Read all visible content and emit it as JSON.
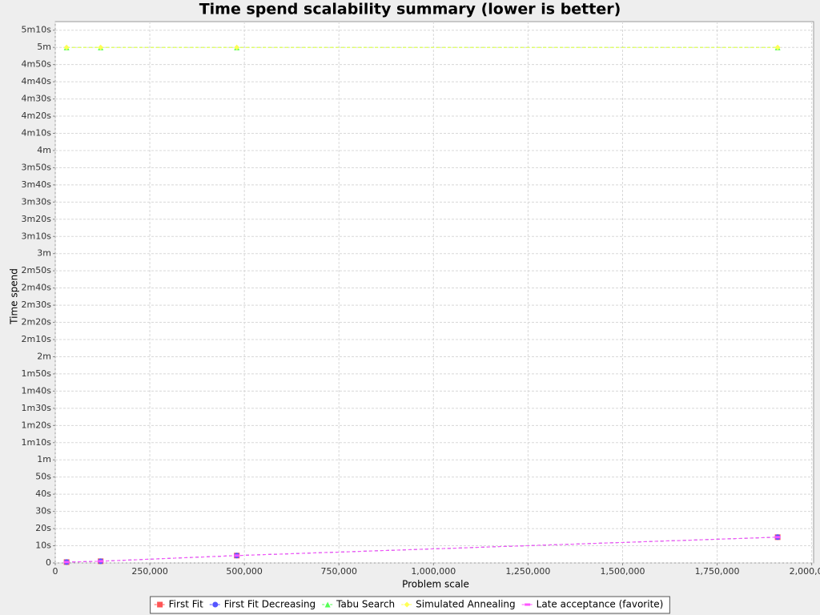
{
  "chart_data": {
    "type": "line",
    "title": "Time spend scalability summary (lower is better)",
    "x_label": "Problem scale",
    "y_label": "Time spend",
    "x": [
      30000,
      120000,
      480000,
      1910000
    ],
    "series": [
      {
        "name": "First Fit",
        "color": "#ff5555",
        "values": [
          0.5,
          1,
          4.3,
          15
        ]
      },
      {
        "name": "First Fit Decreasing",
        "color": "#5555ff",
        "values": [
          0.5,
          1,
          4.3,
          15
        ]
      },
      {
        "name": "Tabu Search",
        "color": "#55ff55",
        "values": [
          300,
          300,
          300,
          300
        ]
      },
      {
        "name": "Simulated Annealing",
        "color": "#ffff55",
        "values": [
          300,
          300,
          300,
          300
        ]
      },
      {
        "name": "Late acceptance (favorite)",
        "color": "#ff55ff",
        "values": [
          0.5,
          1,
          4.3,
          15
        ]
      }
    ],
    "xlim": [
      0,
      2005000
    ],
    "xticks": [
      0,
      {
        "value": 250000,
        "label": "250,000"
      },
      {
        "value": 500000,
        "label": "500,000"
      },
      {
        "value": 750000,
        "label": "750,000"
      },
      {
        "value": 1000000,
        "label": "1,000,000"
      },
      {
        "value": 1250000,
        "label": "1,250,000"
      },
      {
        "value": 1500000,
        "label": "1,500,000"
      },
      {
        "value": 1750000,
        "label": "1,750,000"
      },
      {
        "value": 2000000,
        "label": "2,000,000"
      }
    ],
    "ylim": [
      0,
      315
    ],
    "yticks": [
      0,
      {
        "value": 10,
        "label": "10s"
      },
      {
        "value": 20,
        "label": "20s"
      },
      {
        "value": 30,
        "label": "30s"
      },
      {
        "value": 40,
        "label": "40s"
      },
      {
        "value": 50,
        "label": "50s"
      },
      {
        "value": 60,
        "label": "1m"
      },
      {
        "value": 70,
        "label": "1m10s"
      },
      {
        "value": 80,
        "label": "1m20s"
      },
      {
        "value": 90,
        "label": "1m30s"
      },
      {
        "value": 100,
        "label": "1m40s"
      },
      {
        "value": 110,
        "label": "1m50s"
      },
      {
        "value": 120,
        "label": "2m"
      },
      {
        "value": 130,
        "label": "2m10s"
      },
      {
        "value": 140,
        "label": "2m20s"
      },
      {
        "value": 150,
        "label": "2m30s"
      },
      {
        "value": 160,
        "label": "2m40s"
      },
      {
        "value": 170,
        "label": "2m50s"
      },
      {
        "value": 180,
        "label": "3m"
      },
      {
        "value": 190,
        "label": "3m10s"
      },
      {
        "value": 200,
        "label": "3m20s"
      },
      {
        "value": 210,
        "label": "3m30s"
      },
      {
        "value": 220,
        "label": "3m40s"
      },
      {
        "value": 230,
        "label": "3m50s"
      },
      {
        "value": 240,
        "label": "4m"
      },
      {
        "value": 250,
        "label": "4m10s"
      },
      {
        "value": 260,
        "label": "4m20s"
      },
      {
        "value": 270,
        "label": "4m30s"
      },
      {
        "value": 280,
        "label": "4m40s"
      },
      {
        "value": 290,
        "label": "4m50s"
      },
      {
        "value": 300,
        "label": "5m"
      },
      {
        "value": 310,
        "label": "5m10s"
      }
    ],
    "grid": true
  }
}
